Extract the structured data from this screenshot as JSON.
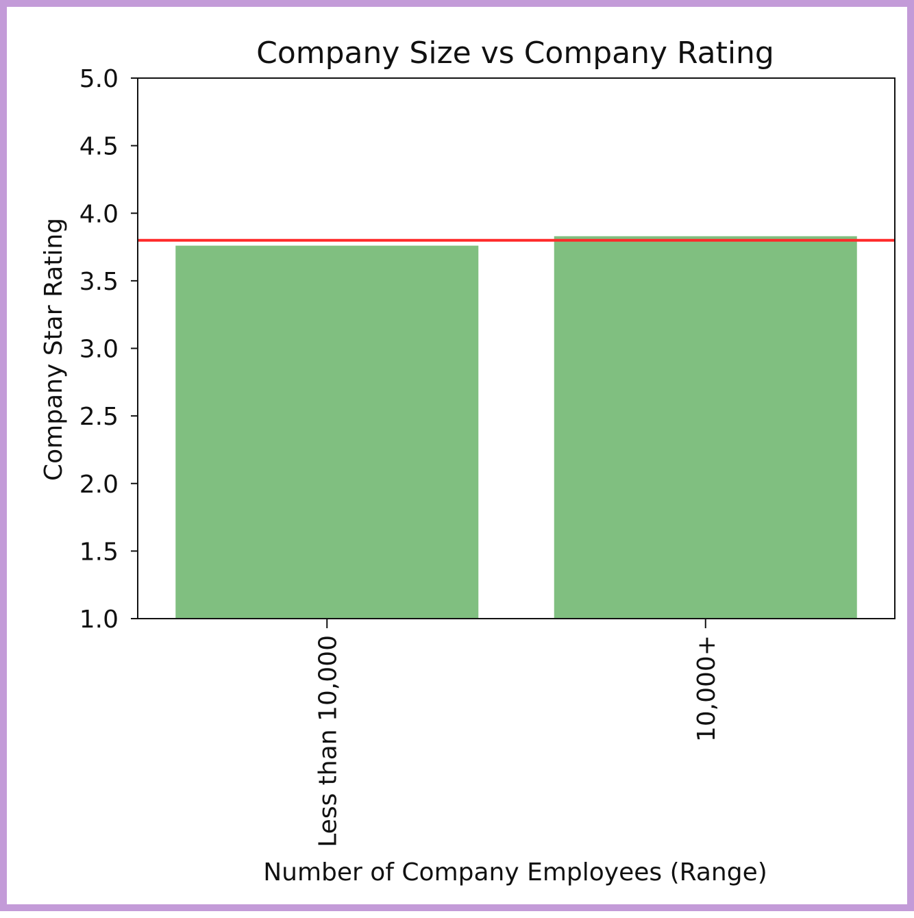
{
  "colors": {
    "frame_border": "#c39bd8",
    "bar_fill": "#80bf80",
    "reference_line": "#ff2a2a",
    "axes": "#111111",
    "background": "#ffffff"
  },
  "chart_data": {
    "type": "bar",
    "title": "Company Size vs Company Rating",
    "xlabel": "Number of Company Employees (Range)",
    "ylabel": "Company Star Rating",
    "categories": [
      "Less than 10,000",
      "10,000+"
    ],
    "values": [
      3.76,
      3.83
    ],
    "ylim": [
      1.0,
      5.0
    ],
    "yticks": [
      "1.0",
      "1.5",
      "2.0",
      "2.5",
      "3.0",
      "3.5",
      "4.0",
      "4.5",
      "5.0"
    ],
    "reference_line": {
      "value": 3.8,
      "orientation": "horizontal"
    },
    "grid": false,
    "legend": "none",
    "xtick_rotation": "vertical"
  }
}
